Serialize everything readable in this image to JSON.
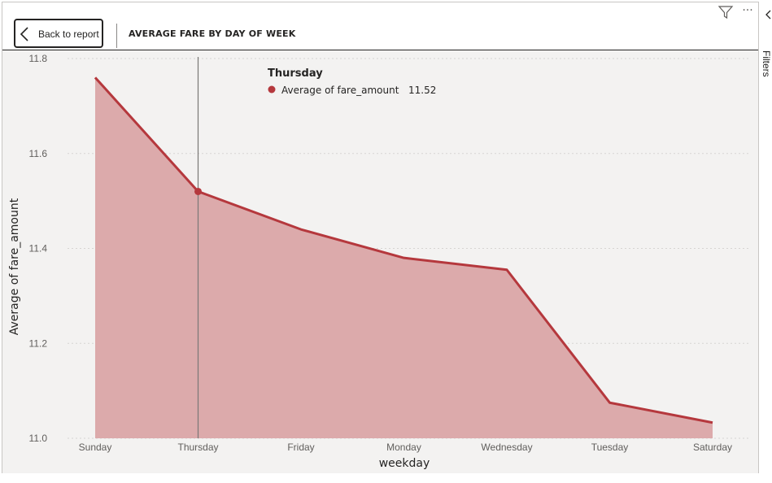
{
  "header": {
    "back_label": "Back to report",
    "title": "AVERAGE FARE BY DAY OF WEEK"
  },
  "filters_pane": {
    "label": "Filters"
  },
  "colors": {
    "series_line": "#b5383d",
    "series_fill": "#dcaaab",
    "background": "#f3f2f1"
  },
  "tooltip": {
    "title": "Thursday",
    "series_label": "Average of fare_amount",
    "value": "11.52"
  },
  "chart_data": {
    "type": "area",
    "title": "AVERAGE FARE BY DAY OF WEEK",
    "xlabel": "weekday",
    "ylabel": "Average of fare_amount",
    "categories": [
      "Sunday",
      "Thursday",
      "Friday",
      "Monday",
      "Wednesday",
      "Tuesday",
      "Saturday"
    ],
    "series": [
      {
        "values": [
          11.76,
          11.52,
          11.44,
          11.38,
          11.355,
          11.075,
          11.033
        ]
      }
    ],
    "ylim": [
      11.0,
      11.8
    ],
    "yticks": [
      "11.0",
      "11.2",
      "11.4",
      "11.6",
      "11.8"
    ],
    "grid": true,
    "highlighted_category": "Thursday"
  }
}
